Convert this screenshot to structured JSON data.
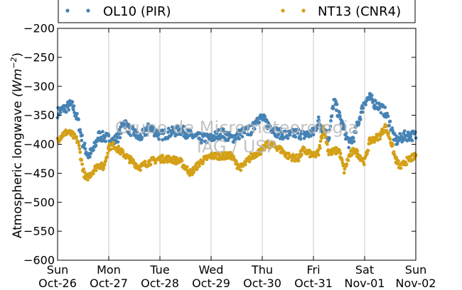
{
  "chart_data": {
    "type": "scatter",
    "ylabel": "Atmospheric longwave",
    "ylabel_unit": "(Wm",
    "ylabel_unit_exp": "−2",
    "ylabel_unit_close": ")",
    "ylim": [
      -600,
      -200
    ],
    "yticks": [
      "−200",
      "−250",
      "−300",
      "−350",
      "−400",
      "−450",
      "−500",
      "−550",
      "−600"
    ],
    "ytick_values": [
      -200,
      -250,
      -300,
      -350,
      -400,
      -450,
      -500,
      -550,
      -600
    ],
    "xlim": [
      "2014-10-26",
      "2014-11-02"
    ],
    "xticks": [
      {
        "day": "Sun",
        "date": "Oct-26"
      },
      {
        "day": "Mon",
        "date": "Oct-27"
      },
      {
        "day": "Tue",
        "date": "Oct-28"
      },
      {
        "day": "Wed",
        "date": "Oct-29"
      },
      {
        "day": "Thu",
        "date": "Oct-30"
      },
      {
        "day": "Fri",
        "date": "Oct-31"
      },
      {
        "day": "Sat",
        "date": "Nov-01"
      },
      {
        "day": "Sun",
        "date": "Nov-02"
      }
    ],
    "grid": "vertical",
    "legend_position": "top-outside",
    "series": [
      {
        "name": "OL10 (PIR)",
        "color": "#4682b4",
        "x_days": [
          0.0,
          0.1,
          0.2,
          0.25,
          0.3,
          0.4,
          0.5,
          0.6,
          0.7,
          0.8,
          1.0,
          1.1,
          1.2,
          1.3,
          1.4,
          1.5,
          1.6,
          1.7,
          1.8,
          2.0,
          2.2,
          2.4,
          2.6,
          2.8,
          3.0,
          3.2,
          3.4,
          3.6,
          3.8,
          3.9,
          4.0,
          4.1,
          4.3,
          4.5,
          4.7,
          4.8,
          5.0,
          5.1,
          5.3,
          5.4,
          5.6,
          5.7,
          5.8,
          6.0,
          6.1,
          6.2,
          6.3,
          6.4,
          6.5,
          6.6,
          6.7,
          6.8,
          7.0
        ],
        "y": [
          -345,
          -340,
          -335,
          -332,
          -335,
          -360,
          -400,
          -420,
          -410,
          -385,
          -390,
          -395,
          -385,
          -360,
          -375,
          -380,
          -390,
          -380,
          -370,
          -385,
          -380,
          -375,
          -385,
          -390,
          -390,
          -380,
          -390,
          -380,
          -375,
          -355,
          -355,
          -365,
          -380,
          -385,
          -380,
          -385,
          -380,
          -360,
          -390,
          -325,
          -375,
          -400,
          -385,
          -325,
          -320,
          -330,
          -335,
          -345,
          -365,
          -395,
          -390,
          -385,
          -385
        ],
        "jitter": 9
      },
      {
        "name": "NT13 (CNR4)",
        "color": "#d4a017",
        "x_days": [
          0.0,
          0.1,
          0.2,
          0.3,
          0.4,
          0.5,
          0.55,
          0.6,
          0.7,
          0.8,
          0.9,
          1.0,
          1.1,
          1.2,
          1.4,
          1.6,
          1.8,
          2.0,
          2.2,
          2.4,
          2.6,
          2.8,
          3.0,
          3.2,
          3.4,
          3.5,
          3.6,
          3.8,
          4.0,
          4.1,
          4.3,
          4.5,
          4.7,
          4.8,
          5.0,
          5.1,
          5.2,
          5.3,
          5.5,
          5.6,
          5.7,
          5.8,
          6.0,
          6.1,
          6.2,
          6.3,
          6.4,
          6.5,
          6.6,
          6.7,
          6.8,
          7.0
        ],
        "y": [
          -392,
          -383,
          -378,
          -385,
          -395,
          -445,
          -460,
          -455,
          -445,
          -435,
          -440,
          -405,
          -402,
          -410,
          -425,
          -440,
          -430,
          -425,
          -425,
          -430,
          -450,
          -430,
          -420,
          -420,
          -420,
          -435,
          -440,
          -420,
          -410,
          -400,
          -405,
          -420,
          -425,
          -410,
          -420,
          -415,
          -370,
          -415,
          -410,
          -445,
          -420,
          -410,
          -430,
          -395,
          -390,
          -385,
          -370,
          -390,
          -425,
          -440,
          -430,
          -420
        ],
        "jitter": 6
      }
    ],
    "watermark_line1": "Grupo de Micrometeorologia",
    "watermark_line2": "IAG / USP"
  }
}
